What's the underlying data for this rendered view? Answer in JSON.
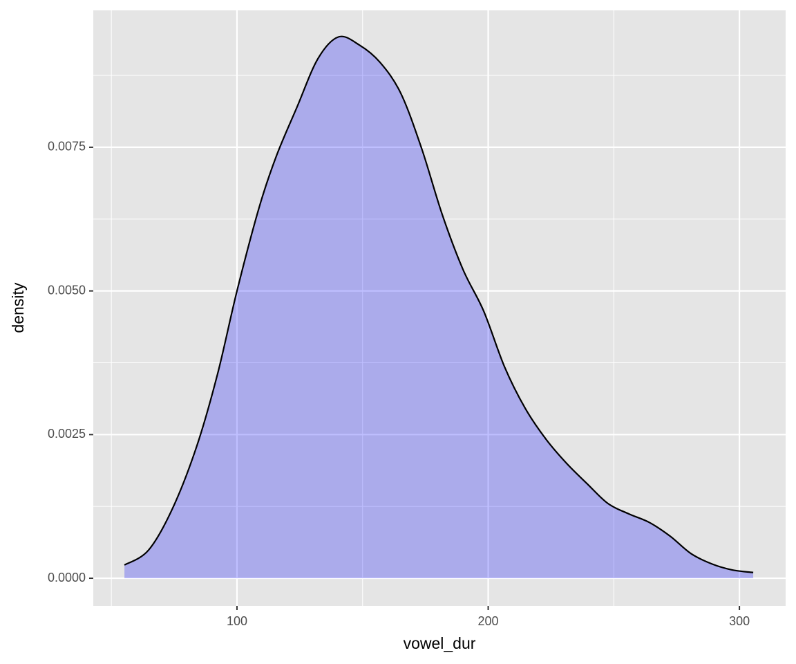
{
  "chart_data": {
    "type": "area",
    "x_label": "vowel_dur",
    "y_label": "density",
    "x": [
      55.2,
      64.8,
      74.4,
      84.0,
      92.3,
      100.0,
      108.8,
      115.7,
      123.9,
      132.2,
      140.4,
      148.7,
      156.9,
      165.2,
      173.5,
      181.7,
      190.0,
      198.2,
      206.5,
      214.7,
      223.0,
      231.2,
      239.5,
      247.7,
      256.0,
      264.2,
      272.5,
      280.7,
      289.0,
      297.2,
      305.5
    ],
    "values": [
      0.00023,
      0.00049,
      0.00122,
      0.0023,
      0.00356,
      0.005,
      0.00645,
      0.00735,
      0.0082,
      0.00904,
      0.00942,
      0.00928,
      0.00898,
      0.00844,
      0.00748,
      0.00633,
      0.00537,
      0.00465,
      0.00368,
      0.00296,
      0.00242,
      0.002,
      0.00164,
      0.0013,
      0.00112,
      0.00097,
      0.00073,
      0.00043,
      0.00025,
      0.000144,
      0.0001
    ],
    "color": "#0000ff",
    "fill_opacity": 0.25,
    "line_color": "#000000",
    "xlim": [
      42.8,
      318.4
    ],
    "ylim": [
      -0.000481,
      0.009882
    ],
    "xticks": [
      100,
      200,
      300
    ],
    "yticks": [
      {
        "value": 0,
        "label": "0.0000"
      },
      {
        "value": 0.0025,
        "label": "0.0025"
      },
      {
        "value": 0.005,
        "label": "0.0050"
      },
      {
        "value": 0.0075,
        "label": "0.0075"
      }
    ],
    "minor_xticks": [
      50,
      150,
      250
    ],
    "minor_yticks": [
      0.00125,
      0.00375,
      0.00625,
      0.00875
    ],
    "grid": true
  }
}
